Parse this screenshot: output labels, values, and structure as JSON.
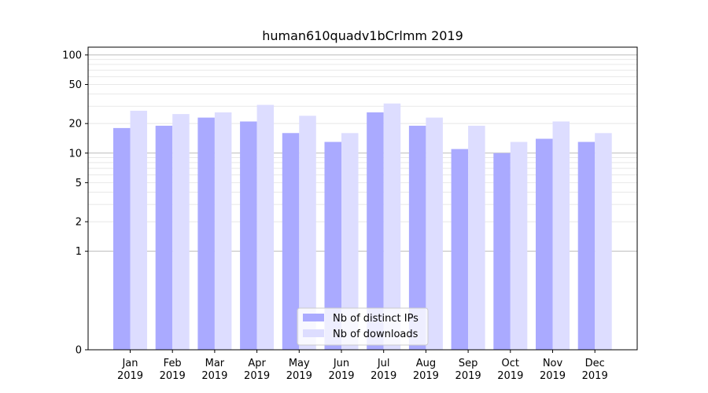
{
  "chart_data": {
    "type": "bar",
    "title": "human610quadv1bCrlmm 2019",
    "xlabel": "",
    "ylabel": "",
    "y_scale": "symlog",
    "ylim": [
      0,
      120
    ],
    "yticks": [
      0,
      1,
      2,
      5,
      10,
      20,
      50,
      100
    ],
    "ytick_labels": [
      "0",
      "1",
      "2",
      "5",
      "10",
      "20",
      "50",
      "100"
    ],
    "categories": [
      "Jan 2019",
      "Feb 2019",
      "Mar 2019",
      "Apr 2019",
      "May 2019",
      "Jun 2019",
      "Jul 2019",
      "Aug 2019",
      "Sep 2019",
      "Oct 2019",
      "Nov 2019",
      "Dec 2019"
    ],
    "category_lines": [
      [
        "Jan",
        "2019"
      ],
      [
        "Feb",
        "2019"
      ],
      [
        "Mar",
        "2019"
      ],
      [
        "Apr",
        "2019"
      ],
      [
        "May",
        "2019"
      ],
      [
        "Jun",
        "2019"
      ],
      [
        "Jul",
        "2019"
      ],
      [
        "Aug",
        "2019"
      ],
      [
        "Sep",
        "2019"
      ],
      [
        "Oct",
        "2019"
      ],
      [
        "Nov",
        "2019"
      ],
      [
        "Dec",
        "2019"
      ]
    ],
    "series": [
      {
        "name": "Nb of distinct IPs",
        "color": "#aaaaff",
        "values": [
          18,
          19,
          23,
          21,
          16,
          13,
          26,
          19,
          11,
          10,
          14,
          13
        ]
      },
      {
        "name": "Nb of downloads",
        "color": "#ddddff",
        "values": [
          27,
          25,
          26,
          31,
          24,
          16,
          32,
          23,
          19,
          13,
          21,
          16
        ]
      }
    ],
    "legend_position": "bottom-center",
    "grid": "horizontal"
  }
}
